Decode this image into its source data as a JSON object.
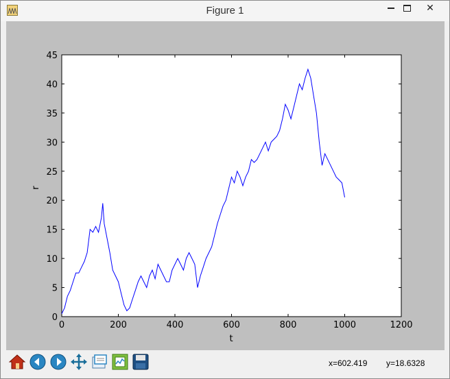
{
  "window": {
    "title": "Figure 1",
    "minimize_label": "",
    "maximize_label": "",
    "close_label": "✕"
  },
  "toolbar": {
    "buttons": [
      {
        "name": "home",
        "icon": "home-icon"
      },
      {
        "name": "back",
        "icon": "back-arrow-icon"
      },
      {
        "name": "forward",
        "icon": "forward-arrow-icon"
      },
      {
        "name": "pan",
        "icon": "pan-move-icon"
      },
      {
        "name": "zoom",
        "icon": "zoom-rect-icon"
      },
      {
        "name": "subplots",
        "icon": "subplots-config-icon"
      },
      {
        "name": "save",
        "icon": "floppy-save-icon"
      }
    ],
    "x_readout": "x=602.419",
    "y_readout": "y=18.6328"
  },
  "chart_data": {
    "type": "line",
    "title": "",
    "xlabel": "t",
    "ylabel": "r",
    "xlim": [
      0,
      1200
    ],
    "ylim": [
      0,
      45
    ],
    "xticks": [
      "0",
      "200",
      "400",
      "600",
      "800",
      "1000",
      "1200"
    ],
    "yticks": [
      "0",
      "5",
      "10",
      "15",
      "20",
      "25",
      "30",
      "35",
      "40",
      "45"
    ],
    "grid": false,
    "line_color": "#0000ff",
    "series": [
      {
        "x": [
          0,
          10,
          20,
          30,
          40,
          50,
          60,
          70,
          80,
          90,
          100,
          110,
          120,
          130,
          140,
          145,
          150,
          160,
          170,
          180,
          190,
          200,
          210,
          220,
          230,
          240,
          250,
          260,
          270,
          280,
          290,
          300,
          310,
          320,
          330,
          340,
          350,
          360,
          370,
          380,
          390,
          400,
          410,
          420,
          430,
          440,
          450,
          460,
          470,
          480,
          490,
          500,
          510,
          520,
          530,
          540,
          550,
          560,
          570,
          580,
          590,
          600,
          610,
          620,
          630,
          640,
          650,
          660,
          670,
          680,
          690,
          700,
          710,
          720,
          730,
          740,
          750,
          760,
          770,
          780,
          790,
          800,
          810,
          820,
          830,
          840,
          850,
          860,
          870,
          880,
          890,
          900,
          910,
          920,
          930,
          940,
          950,
          960,
          970,
          980,
          990,
          1000
        ],
        "y": [
          0.5,
          1.5,
          3.5,
          4.5,
          6,
          7.5,
          7.5,
          8.5,
          9.5,
          11,
          15,
          14.5,
          15.5,
          14.5,
          17,
          19.5,
          16,
          13.5,
          11,
          8,
          7,
          6,
          4,
          2,
          1,
          1.5,
          3,
          4.5,
          6,
          7,
          6,
          5,
          7,
          8,
          6.5,
          9,
          8,
          7,
          6,
          6,
          8,
          9,
          10,
          9,
          8,
          10,
          11,
          10,
          9,
          5,
          7,
          8.5,
          10,
          11,
          12,
          14,
          16,
          17.5,
          19,
          20,
          22,
          24,
          23,
          25,
          24,
          22.5,
          24,
          25,
          27,
          26.5,
          27,
          28,
          29,
          30,
          28.5,
          30,
          30.5,
          31,
          32,
          34,
          36.5,
          35.5,
          34,
          36,
          38,
          40,
          39,
          41,
          42.5,
          41,
          38,
          35,
          30,
          26,
          28,
          27,
          26,
          25,
          24,
          23.5,
          23,
          20.5
        ]
      }
    ]
  }
}
